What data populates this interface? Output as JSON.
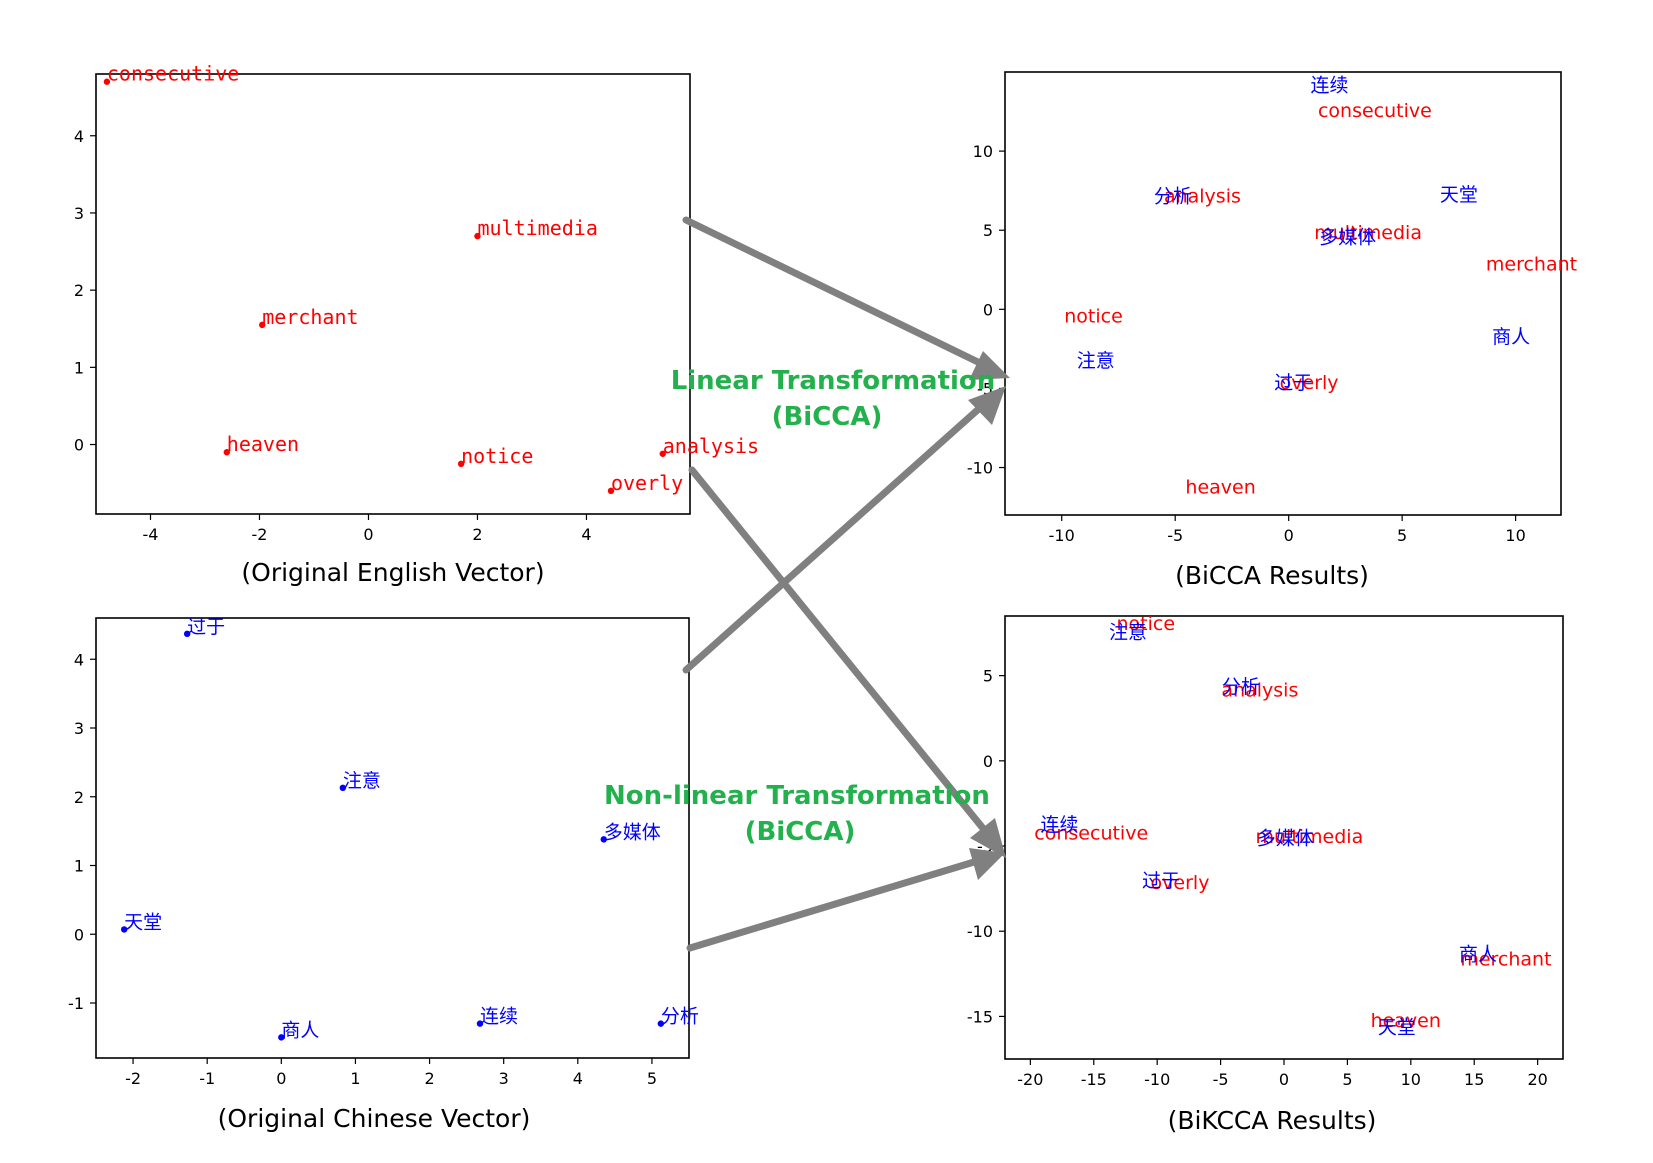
{
  "colors": {
    "english": "#ff0000",
    "chinese": "#0000ff",
    "arrow": "#808080",
    "transform_label": "#22b14c"
  },
  "transforms": {
    "linear": {
      "line1": "Linear Transformation",
      "line2": "(BiCCA)"
    },
    "nonlinear": {
      "line1": "Non-linear Transformation",
      "line2": "(BiCCA)"
    }
  },
  "chart_data": [
    {
      "id": "english",
      "type": "scatter",
      "title": "",
      "caption": "(Original English Vector)",
      "xlabel": "",
      "ylabel": "",
      "xlim": [
        -5.0,
        5.9
      ],
      "ylim": [
        -0.9,
        4.8
      ],
      "xticks": [
        -4,
        -2,
        0,
        2,
        4
      ],
      "yticks": [
        0,
        1,
        2,
        3,
        4
      ],
      "grid": false,
      "marker": true,
      "series": [
        {
          "lang": "en",
          "points": [
            {
              "label": "consecutive",
              "x": -4.8,
              "y": 4.7
            },
            {
              "label": "multimedia",
              "x": 2.0,
              "y": 2.7
            },
            {
              "label": "merchant",
              "x": -1.95,
              "y": 1.55
            },
            {
              "label": "heaven",
              "x": -2.6,
              "y": -0.1
            },
            {
              "label": "notice",
              "x": 1.7,
              "y": -0.25
            },
            {
              "label": "analysis",
              "x": 5.4,
              "y": -0.12
            },
            {
              "label": "overly",
              "x": 4.45,
              "y": -0.6
            }
          ]
        }
      ]
    },
    {
      "id": "bicca",
      "type": "scatter",
      "title": "",
      "caption": "(BiCCA Results)",
      "xlabel": "",
      "ylabel": "",
      "xlim": [
        -12.5,
        12
      ],
      "ylim": [
        -13,
        15
      ],
      "xticks": [
        -10,
        -5,
        0,
        5,
        10
      ],
      "yticks": [
        10,
        5,
        0,
        -5,
        -10
      ],
      "grid": false,
      "marker": false,
      "series": [
        {
          "lang": "en",
          "points": [
            {
              "label": "consecutive",
              "x": 3.8,
              "y": 12.6
            },
            {
              "label": "analysis",
              "x": -3.8,
              "y": 7.2
            },
            {
              "label": "multimedia",
              "x": 3.5,
              "y": 4.9
            },
            {
              "label": "merchant",
              "x": 10.7,
              "y": 2.9
            },
            {
              "label": "notice",
              "x": -8.6,
              "y": -0.4
            },
            {
              "label": "overly",
              "x": 0.9,
              "y": -4.6
            },
            {
              "label": "heaven",
              "x": -3.0,
              "y": -11.2
            }
          ]
        },
        {
          "lang": "zh",
          "points": [
            {
              "label": "连续",
              "x": 1.8,
              "y": 14.2
            },
            {
              "label": "分析",
              "x": -5.1,
              "y": 7.2
            },
            {
              "label": "多媒体",
              "x": 2.6,
              "y": 4.6
            },
            {
              "label": "天堂",
              "x": 7.5,
              "y": 7.3
            },
            {
              "label": "商人",
              "x": 9.8,
              "y": -1.7
            },
            {
              "label": "注意",
              "x": -8.5,
              "y": -3.2
            },
            {
              "label": "过于",
              "x": 0.2,
              "y": -4.6
            }
          ]
        }
      ]
    },
    {
      "id": "chinese",
      "type": "scatter",
      "title": "",
      "caption": "(Original Chinese Vector)",
      "xlabel": "",
      "ylabel": "",
      "xlim": [
        -2.5,
        5.5
      ],
      "ylim": [
        -1.8,
        4.6
      ],
      "xticks": [
        -2,
        -1,
        0,
        1,
        2,
        3,
        4,
        5
      ],
      "yticks": [
        4,
        3,
        2,
        1,
        0,
        -1
      ],
      "grid": false,
      "marker": true,
      "series": [
        {
          "lang": "zh",
          "points": [
            {
              "label": "过于",
              "x": -1.27,
              "y": 4.37
            },
            {
              "label": "注意",
              "x": 0.83,
              "y": 2.13
            },
            {
              "label": "多媒体",
              "x": 4.35,
              "y": 1.38
            },
            {
              "label": "天堂",
              "x": -2.12,
              "y": 0.07
            },
            {
              "label": "商人",
              "x": 0.0,
              "y": -1.5
            },
            {
              "label": "连续",
              "x": 2.68,
              "y": -1.3
            },
            {
              "label": "分析",
              "x": 5.12,
              "y": -1.3
            }
          ]
        }
      ]
    },
    {
      "id": "bikcca",
      "type": "scatter",
      "title": "",
      "caption": "(BiKCCA Results)",
      "xlabel": "",
      "ylabel": "",
      "xlim": [
        -22,
        22
      ],
      "ylim": [
        -17.5,
        8.5
      ],
      "xticks": [
        -20,
        -15,
        -10,
        -5,
        0,
        5,
        10,
        15,
        20
      ],
      "yticks": [
        5,
        0,
        -5,
        -10,
        -15
      ],
      "grid": false,
      "marker": false,
      "series": [
        {
          "lang": "en",
          "points": [
            {
              "label": "notice",
              "x": -10.9,
              "y": 8.1
            },
            {
              "label": "analysis",
              "x": -1.9,
              "y": 4.2
            },
            {
              "label": "consecutive",
              "x": -15.2,
              "y": -4.2
            },
            {
              "label": "multimedia",
              "x": 2.0,
              "y": -4.4
            },
            {
              "label": "overly",
              "x": -8.2,
              "y": -7.1
            },
            {
              "label": "merchant",
              "x": 17.5,
              "y": -11.6
            },
            {
              "label": "heaven",
              "x": 9.6,
              "y": -15.2
            }
          ]
        },
        {
          "lang": "zh",
          "points": [
            {
              "label": "注意",
              "x": -12.3,
              "y": 7.6
            },
            {
              "label": "分析",
              "x": -3.4,
              "y": 4.4
            },
            {
              "label": "连续",
              "x": -17.7,
              "y": -3.7
            },
            {
              "label": "多媒体",
              "x": 0.1,
              "y": -4.5
            },
            {
              "label": "过于",
              "x": -9.7,
              "y": -7.0
            },
            {
              "label": "商人",
              "x": 15.3,
              "y": -11.3
            },
            {
              "label": "天堂",
              "x": 8.9,
              "y": -15.6
            }
          ]
        }
      ]
    }
  ]
}
